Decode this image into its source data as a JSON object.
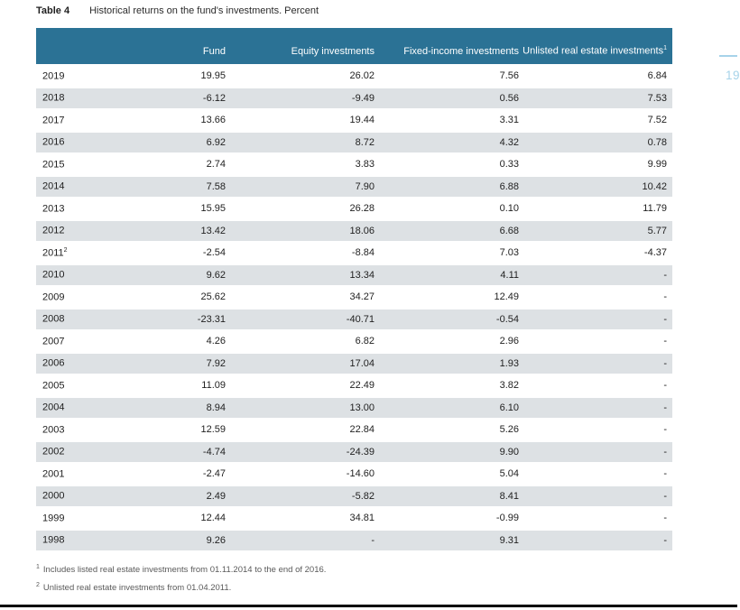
{
  "page": {
    "title_label": "Table 4",
    "title_text": "Historical returns on the fund's investments. Percent",
    "page_number": "19"
  },
  "colors": {
    "header_bg": "#2b7295",
    "row_stripe": "#dde1e4",
    "accent_light_blue": "#a6d3e9",
    "bottom_rule": "#000000"
  },
  "table": {
    "headers": {
      "year": "",
      "fund": "Fund",
      "equity": "Equity investments",
      "fixed_income": "Fixed-income investments",
      "real_estate": "Unlisted real estate investments",
      "real_estate_sup": "1"
    },
    "rows": [
      {
        "year": "2019",
        "year_sup": "",
        "fund": "19.95",
        "equity": "26.02",
        "fixed_income": "7.56",
        "real_estate": "6.84"
      },
      {
        "year": "2018",
        "year_sup": "",
        "fund": "-6.12",
        "equity": "-9.49",
        "fixed_income": "0.56",
        "real_estate": "7.53"
      },
      {
        "year": "2017",
        "year_sup": "",
        "fund": "13.66",
        "equity": "19.44",
        "fixed_income": "3.31",
        "real_estate": "7.52"
      },
      {
        "year": "2016",
        "year_sup": "",
        "fund": "6.92",
        "equity": "8.72",
        "fixed_income": "4.32",
        "real_estate": "0.78"
      },
      {
        "year": "2015",
        "year_sup": "",
        "fund": "2.74",
        "equity": "3.83",
        "fixed_income": "0.33",
        "real_estate": "9.99"
      },
      {
        "year": "2014",
        "year_sup": "",
        "fund": "7.58",
        "equity": "7.90",
        "fixed_income": "6.88",
        "real_estate": "10.42"
      },
      {
        "year": "2013",
        "year_sup": "",
        "fund": "15.95",
        "equity": "26.28",
        "fixed_income": "0.10",
        "real_estate": "11.79"
      },
      {
        "year": "2012",
        "year_sup": "",
        "fund": "13.42",
        "equity": "18.06",
        "fixed_income": "6.68",
        "real_estate": "5.77"
      },
      {
        "year": "2011",
        "year_sup": "2",
        "fund": "-2.54",
        "equity": "-8.84",
        "fixed_income": "7.03",
        "real_estate": "-4.37"
      },
      {
        "year": "2010",
        "year_sup": "",
        "fund": "9.62",
        "equity": "13.34",
        "fixed_income": "4.11",
        "real_estate": "-"
      },
      {
        "year": "2009",
        "year_sup": "",
        "fund": "25.62",
        "equity": "34.27",
        "fixed_income": "12.49",
        "real_estate": "-"
      },
      {
        "year": "2008",
        "year_sup": "",
        "fund": "-23.31",
        "equity": "-40.71",
        "fixed_income": "-0.54",
        "real_estate": "-"
      },
      {
        "year": "2007",
        "year_sup": "",
        "fund": "4.26",
        "equity": "6.82",
        "fixed_income": "2.96",
        "real_estate": "-"
      },
      {
        "year": "2006",
        "year_sup": "",
        "fund": "7.92",
        "equity": "17.04",
        "fixed_income": "1.93",
        "real_estate": "-"
      },
      {
        "year": "2005",
        "year_sup": "",
        "fund": "11.09",
        "equity": "22.49",
        "fixed_income": "3.82",
        "real_estate": "-"
      },
      {
        "year": "2004",
        "year_sup": "",
        "fund": "8.94",
        "equity": "13.00",
        "fixed_income": "6.10",
        "real_estate": "-"
      },
      {
        "year": "2003",
        "year_sup": "",
        "fund": "12.59",
        "equity": "22.84",
        "fixed_income": "5.26",
        "real_estate": "-"
      },
      {
        "year": "2002",
        "year_sup": "",
        "fund": "-4.74",
        "equity": "-24.39",
        "fixed_income": "9.90",
        "real_estate": "-"
      },
      {
        "year": "2001",
        "year_sup": "",
        "fund": "-2.47",
        "equity": "-14.60",
        "fixed_income": "5.04",
        "real_estate": "-"
      },
      {
        "year": "2000",
        "year_sup": "",
        "fund": "2.49",
        "equity": "-5.82",
        "fixed_income": "8.41",
        "real_estate": "-"
      },
      {
        "year": "1999",
        "year_sup": "",
        "fund": "12.44",
        "equity": "34.81",
        "fixed_income": "-0.99",
        "real_estate": "-"
      },
      {
        "year": "1998",
        "year_sup": "",
        "fund": "9.26",
        "equity": "-",
        "fixed_income": "9.31",
        "real_estate": "-"
      }
    ]
  },
  "footnotes": [
    {
      "marker": "1",
      "text": "Includes listed real estate investments from 01.11.2014 to the end of 2016."
    },
    {
      "marker": "2",
      "text": "Unlisted real estate investments from 01.04.2011."
    }
  ]
}
